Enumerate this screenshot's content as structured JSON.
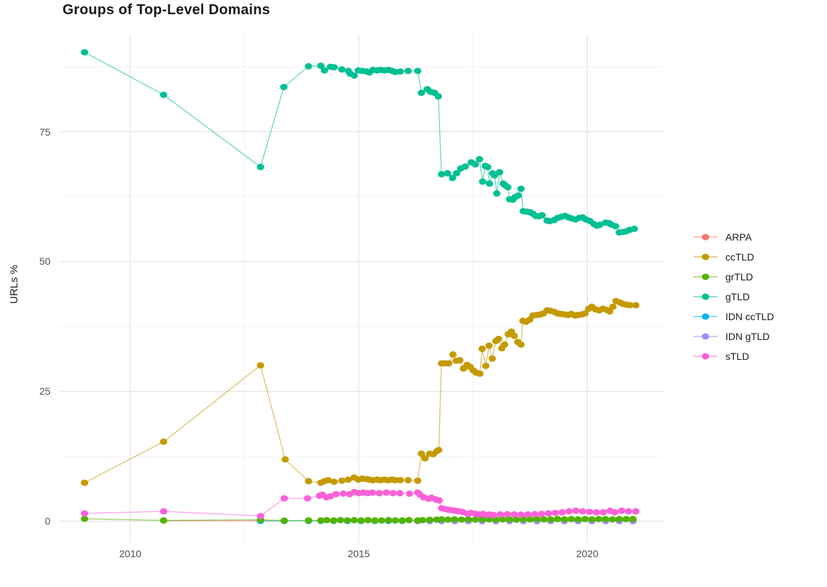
{
  "title": "Groups of Top-Level Domains",
  "chart_data": {
    "type": "line",
    "title": "Groups of Top-Level Domains",
    "xlabel": "",
    "ylabel": "URLs %",
    "grid": true,
    "legend_position": "right",
    "xlim": [
      2008.44,
      2021.67
    ],
    "ylim": [
      -4.2,
      93.8
    ],
    "x_ticks": [
      2010,
      2015,
      2020
    ],
    "x_tick_labels": [
      "2010",
      "2015",
      "2020"
    ],
    "x_minor_ticks": [
      2012.5,
      2017.5
    ],
    "y_ticks": [
      0,
      25,
      50,
      75
    ],
    "y_tick_labels": [
      "0",
      "25",
      "50",
      "75"
    ],
    "y_minor_ticks": [
      12.5,
      37.5,
      62.5,
      87.5
    ],
    "grid_major_color": "#e3e3e3",
    "grid_minor_color": "#f1f1f1",
    "line_opacity": 0.6,
    "z_order": [
      "ARPA",
      "IDN ccTLD",
      "IDN gTLD",
      "grTLD",
      "ccTLD",
      "gTLD",
      "sTLD"
    ],
    "series": [
      {
        "name": "ARPA",
        "color": "#F8766D",
        "x": [
          2010.73,
          2012.85,
          2013.37
        ],
        "y": [
          0.1,
          0.08,
          0.05
        ]
      },
      {
        "name": "ccTLD",
        "color": "#C49A00",
        "x": [
          2009.0,
          2010.73,
          2012.85,
          2013.39,
          2013.9,
          2014.17,
          2014.25,
          2014.33,
          2014.46,
          2014.63,
          2014.77,
          2014.9,
          2014.99,
          2015.08,
          2015.17,
          2015.23,
          2015.31,
          2015.4,
          2015.48,
          2015.56,
          2015.65,
          2015.73,
          2015.8,
          2015.91,
          2016.08,
          2016.29,
          2016.37,
          2016.45,
          2016.55,
          2016.63,
          2016.71,
          2016.75,
          2016.81,
          2016.89,
          2016.97,
          2017.06,
          2017.13,
          2017.21,
          2017.29,
          2017.37,
          2017.44,
          2017.51,
          2017.57,
          2017.65,
          2017.7,
          2017.78,
          2017.85,
          2017.92,
          2018.0,
          2018.06,
          2018.13,
          2018.19,
          2018.27,
          2018.34,
          2018.4,
          2018.48,
          2018.55,
          2018.59,
          2018.66,
          2018.74,
          2018.81,
          2018.89,
          2018.97,
          2019.04,
          2019.12,
          2019.2,
          2019.28,
          2019.35,
          2019.43,
          2019.51,
          2019.58,
          2019.65,
          2019.73,
          2019.79,
          2019.87,
          2019.95,
          2020.03,
          2020.1,
          2020.18,
          2020.26,
          2020.34,
          2020.42,
          2020.49,
          2020.56,
          2020.63,
          2020.72,
          2020.79,
          2020.86,
          2020.93,
          2021.06
        ],
        "y": [
          7.4,
          15.3,
          30.0,
          11.9,
          7.7,
          7.4,
          7.7,
          7.9,
          7.6,
          7.8,
          8.0,
          8.4,
          8.0,
          8.2,
          8.1,
          8.0,
          7.9,
          8.0,
          7.9,
          8.0,
          7.9,
          8.0,
          7.9,
          7.9,
          7.9,
          7.8,
          13.0,
          12.1,
          13.0,
          12.9,
          13.5,
          13.7,
          30.4,
          30.4,
          30.4,
          32.1,
          30.9,
          31.0,
          29.4,
          30.1,
          29.7,
          29.0,
          28.6,
          28.4,
          33.2,
          29.9,
          33.8,
          31.3,
          34.7,
          35.1,
          33.3,
          34.0,
          36.0,
          36.5,
          35.7,
          34.5,
          34.0,
          38.6,
          38.4,
          38.8,
          39.6,
          39.7,
          39.8,
          40.0,
          40.6,
          40.5,
          40.3,
          40.0,
          39.9,
          39.8,
          39.7,
          39.9,
          39.6,
          39.7,
          39.8,
          40.0,
          40.9,
          41.3,
          40.8,
          40.6,
          40.9,
          40.7,
          40.4,
          41.3,
          42.4,
          42.1,
          41.8,
          41.7,
          41.6,
          41.6
        ]
      },
      {
        "name": "grTLD",
        "color": "#53B400",
        "x": [
          2009.0,
          2010.73,
          2012.85,
          2013.37,
          2013.9,
          2014.17,
          2014.3,
          2014.45,
          2014.6,
          2014.75,
          2014.9,
          2015.05,
          2015.2,
          2015.35,
          2015.5,
          2015.65,
          2015.8,
          2015.95,
          2016.1,
          2016.29,
          2016.4,
          2016.55,
          2016.7,
          2016.81,
          2016.95,
          2017.1,
          2017.25,
          2017.4,
          2017.55,
          2017.7,
          2017.85,
          2018.0,
          2018.15,
          2018.3,
          2018.45,
          2018.6,
          2018.75,
          2018.9,
          2019.05,
          2019.2,
          2019.35,
          2019.5,
          2019.65,
          2019.8,
          2019.95,
          2020.1,
          2020.25,
          2020.4,
          2020.55,
          2020.7,
          2020.85,
          2021.0
        ],
        "y": [
          0.45,
          0.15,
          0.3,
          0.1,
          0.15,
          0.15,
          0.2,
          0.15,
          0.2,
          0.15,
          0.2,
          0.15,
          0.2,
          0.15,
          0.15,
          0.2,
          0.15,
          0.15,
          0.2,
          0.15,
          0.2,
          0.25,
          0.3,
          0.35,
          0.3,
          0.35,
          0.3,
          0.35,
          0.3,
          0.35,
          0.35,
          0.3,
          0.35,
          0.35,
          0.3,
          0.35,
          0.35,
          0.4,
          0.35,
          0.35,
          0.4,
          0.35,
          0.4,
          0.35,
          0.4,
          0.35,
          0.4,
          0.4,
          0.35,
          0.4,
          0.4,
          0.4
        ]
      },
      {
        "name": "gTLD",
        "color": "#00C094",
        "x": [
          2009.0,
          2010.73,
          2012.85,
          2013.36,
          2013.9,
          2014.17,
          2014.25,
          2014.38,
          2014.46,
          2014.63,
          2014.77,
          2014.81,
          2014.9,
          2014.99,
          2015.08,
          2015.17,
          2015.23,
          2015.31,
          2015.4,
          2015.48,
          2015.56,
          2015.65,
          2015.73,
          2015.8,
          2015.91,
          2016.08,
          2016.29,
          2016.37,
          2016.5,
          2016.57,
          2016.66,
          2016.74,
          2016.81,
          2016.94,
          2017.05,
          2017.14,
          2017.23,
          2017.33,
          2017.46,
          2017.55,
          2017.64,
          2017.71,
          2017.77,
          2017.82,
          2017.86,
          2017.93,
          2017.97,
          2018.02,
          2018.08,
          2018.16,
          2018.2,
          2018.26,
          2018.3,
          2018.37,
          2018.42,
          2018.49,
          2018.55,
          2018.6,
          2018.68,
          2018.75,
          2018.81,
          2018.87,
          2018.94,
          2019.01,
          2019.12,
          2019.18,
          2019.28,
          2019.35,
          2019.43,
          2019.51,
          2019.59,
          2019.66,
          2019.74,
          2019.82,
          2019.9,
          2019.97,
          2020.06,
          2020.15,
          2020.21,
          2020.28,
          2020.4,
          2020.47,
          2020.53,
          2020.62,
          2020.7,
          2020.78,
          2020.85,
          2020.93,
          2021.03
        ],
        "y": [
          90.3,
          82.1,
          68.2,
          83.6,
          87.6,
          87.7,
          86.8,
          87.5,
          87.4,
          87.0,
          86.7,
          86.2,
          85.8,
          86.8,
          86.7,
          86.6,
          86.4,
          86.9,
          86.8,
          86.9,
          86.8,
          86.9,
          86.7,
          86.5,
          86.6,
          86.7,
          86.7,
          82.5,
          83.2,
          82.7,
          82.5,
          81.8,
          66.8,
          67.0,
          66.1,
          67.0,
          67.9,
          68.3,
          69.1,
          68.7,
          69.7,
          65.4,
          68.4,
          68.2,
          65.0,
          67.0,
          66.6,
          63.1,
          67.2,
          65.0,
          64.7,
          64.3,
          62.0,
          61.9,
          62.4,
          62.7,
          64.0,
          59.7,
          59.6,
          59.5,
          59.2,
          58.8,
          58.7,
          58.9,
          57.9,
          57.8,
          58.0,
          58.4,
          58.6,
          58.8,
          58.5,
          58.3,
          58.1,
          58.4,
          58.5,
          58.1,
          57.8,
          57.2,
          56.9,
          57.1,
          57.5,
          57.4,
          57.1,
          56.8,
          55.6,
          55.7,
          55.8,
          56.1,
          56.3
        ]
      },
      {
        "name": "IDN ccTLD",
        "color": "#00B6EB",
        "x": [
          2012.85,
          2013.37,
          2013.9,
          2014.17,
          2014.45,
          2014.75,
          2015.05,
          2015.35,
          2015.65,
          2015.95,
          2016.29,
          2016.55,
          2016.81,
          2017.1,
          2017.4,
          2017.7,
          2018.0,
          2018.3,
          2018.6,
          2018.9,
          2019.2,
          2019.5,
          2019.8,
          2020.1,
          2020.4,
          2020.7,
          2021.0
        ],
        "y": [
          0.05,
          0.05,
          0.05,
          0.05,
          0.05,
          0.05,
          0.05,
          0.05,
          0.05,
          0.05,
          0.05,
          0.05,
          0.05,
          0.05,
          0.05,
          0.05,
          0.05,
          0.05,
          0.05,
          0.05,
          0.05,
          0.05,
          0.05,
          0.05,
          0.05,
          0.05,
          0.05
        ]
      },
      {
        "name": "IDN gTLD",
        "color": "#A58AFF",
        "x": [
          2016.29,
          2016.55,
          2016.81,
          2017.1,
          2017.4,
          2017.7,
          2018.0,
          2018.3,
          2018.6,
          2018.9,
          2019.2,
          2019.5,
          2019.8,
          2020.1,
          2020.4,
          2020.7,
          2021.0
        ],
        "y": [
          0.03,
          0.03,
          0.03,
          0.03,
          0.03,
          0.03,
          0.03,
          0.03,
          0.03,
          0.03,
          0.03,
          0.03,
          0.03,
          0.03,
          0.03,
          0.03,
          0.03
        ]
      },
      {
        "name": "sTLD",
        "color": "#FB61D7",
        "x": [
          2009.0,
          2010.73,
          2012.85,
          2013.37,
          2013.88,
          2014.14,
          2014.21,
          2014.29,
          2014.38,
          2014.5,
          2014.66,
          2014.8,
          2014.9,
          2015.0,
          2015.1,
          2015.2,
          2015.3,
          2015.45,
          2015.6,
          2015.75,
          2015.9,
          2016.11,
          2016.29,
          2016.34,
          2016.42,
          2016.53,
          2016.59,
          2016.68,
          2016.76,
          2016.81,
          2016.89,
          2016.97,
          2017.05,
          2017.12,
          2017.2,
          2017.28,
          2017.38,
          2017.46,
          2017.55,
          2017.64,
          2017.72,
          2017.8,
          2017.87,
          2017.95,
          2018.1,
          2018.25,
          2018.4,
          2018.55,
          2018.7,
          2018.85,
          2019.0,
          2019.15,
          2019.3,
          2019.45,
          2019.6,
          2019.75,
          2019.9,
          2020.05,
          2020.2,
          2020.35,
          2020.5,
          2020.6,
          2020.75,
          2020.9,
          2021.06
        ],
        "y": [
          1.5,
          1.9,
          1.0,
          4.4,
          4.4,
          4.9,
          5.1,
          4.6,
          4.8,
          5.2,
          5.3,
          5.2,
          5.6,
          5.4,
          5.5,
          5.4,
          5.5,
          5.4,
          5.5,
          5.4,
          5.4,
          5.3,
          5.5,
          5.1,
          4.6,
          4.3,
          4.5,
          4.2,
          4.0,
          2.5,
          2.35,
          2.2,
          2.1,
          2.0,
          1.9,
          1.75,
          1.4,
          1.6,
          1.4,
          1.3,
          1.4,
          1.2,
          1.3,
          1.2,
          1.3,
          1.35,
          1.3,
          1.25,
          1.3,
          1.35,
          1.4,
          1.5,
          1.6,
          1.7,
          1.9,
          2.0,
          1.9,
          1.8,
          1.7,
          1.7,
          2.0,
          1.7,
          2.0,
          1.9,
          1.9
        ]
      }
    ]
  }
}
